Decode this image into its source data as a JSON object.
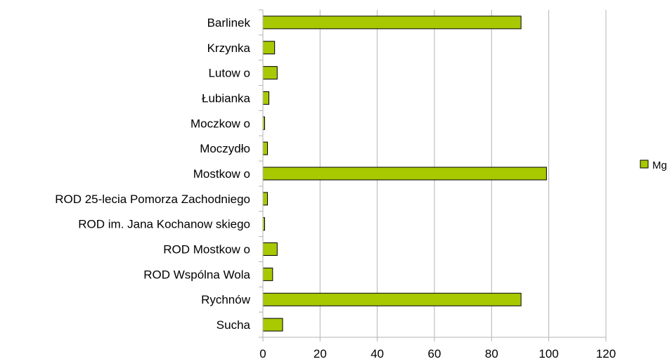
{
  "chart_data": {
    "type": "bar",
    "orientation": "horizontal",
    "title": "",
    "xlabel": "",
    "ylabel": "",
    "categories": [
      "Barlinek",
      "Krzynka",
      "Lutow o",
      "Łubianka",
      "Moczkow o",
      "Moczydło",
      "Mostkow o",
      "ROD 25-lecia Pomorza Zachodniego",
      "ROD im. Jana Kochanow skiego",
      "ROD Mostkow o",
      "ROD Wspólna Wola",
      "Rychnów",
      "Sucha"
    ],
    "series": [
      {
        "name": "Mg",
        "color": "#a8c800",
        "values": [
          90.3,
          4.1,
          5.0,
          2.1,
          0.6,
          1.6,
          99.2,
          1.6,
          0.6,
          5.0,
          3.4,
          90.3,
          6.9
        ]
      }
    ],
    "xlim": [
      0,
      120
    ],
    "xticks": [
      "0",
      "20",
      "40",
      "60",
      "80",
      "100",
      "120"
    ],
    "grid": "vertical",
    "legend": "right"
  }
}
